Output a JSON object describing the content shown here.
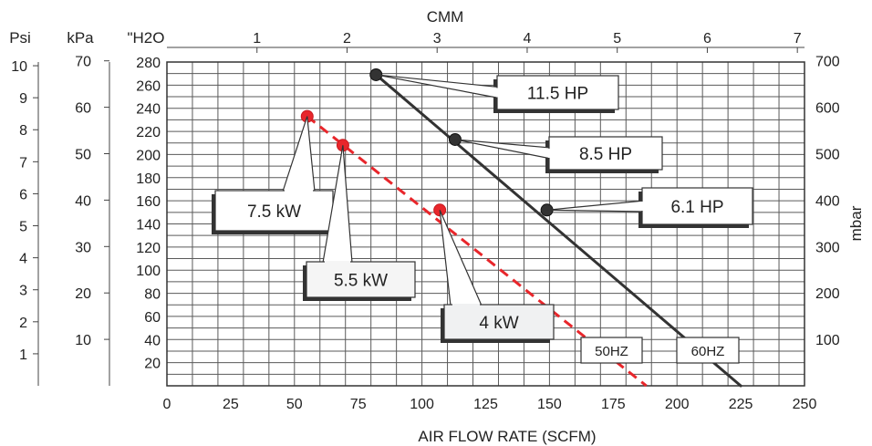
{
  "chart_data": {
    "type": "line",
    "title": "",
    "xlabel": "AIR FLOW RATE (SCFM)",
    "x_top_label": "CMM",
    "xlim": [
      0,
      250
    ],
    "x_ticks": [
      0,
      25,
      50,
      75,
      100,
      125,
      150,
      175,
      200,
      225,
      250
    ],
    "x_top_ticks": [
      "1",
      "2",
      "3",
      "4",
      "5",
      "6",
      "7"
    ],
    "y_primary_label": "\"H2O",
    "ylim_h2o": [
      0,
      280
    ],
    "y_h2o_ticks": [
      "280",
      "260",
      "240",
      "220",
      "200",
      "180",
      "160",
      "140",
      "120",
      "100",
      "80",
      "60",
      "40",
      "20"
    ],
    "y_kpa_label": "kPa",
    "y_kpa_ticks": [
      "70",
      "60",
      "50",
      "40",
      "30",
      "20",
      "10"
    ],
    "y_psi_label": "Psi",
    "y_psi_ticks": [
      "10",
      "9",
      "8",
      "7",
      "6",
      "5",
      "4",
      "3",
      "2",
      "1"
    ],
    "y_right_label": "mbar",
    "y_mbar_ticks": [
      "700",
      "600",
      "500",
      "400",
      "300",
      "200",
      "100"
    ],
    "grid": true,
    "series": [
      {
        "name": "60HZ",
        "style": "solid",
        "color": "#333333",
        "x": [
          82,
          225
        ],
        "y": [
          269,
          0
        ],
        "points": [
          {
            "x": 82,
            "y": 269,
            "label": "11.5 HP"
          },
          {
            "x": 113,
            "y": 213,
            "label": "8.5 HP"
          },
          {
            "x": 149,
            "y": 152,
            "label": "6.1 HP"
          }
        ]
      },
      {
        "name": "50HZ",
        "style": "dashed",
        "color": "#e8262b",
        "x": [
          55,
          188
        ],
        "y": [
          233,
          0
        ],
        "points": [
          {
            "x": 55,
            "y": 233,
            "label": "7.5 kW"
          },
          {
            "x": 69,
            "y": 208,
            "label": "5.5 kW"
          },
          {
            "x": 107,
            "y": 152,
            "label": "4 kW"
          }
        ]
      }
    ]
  }
}
